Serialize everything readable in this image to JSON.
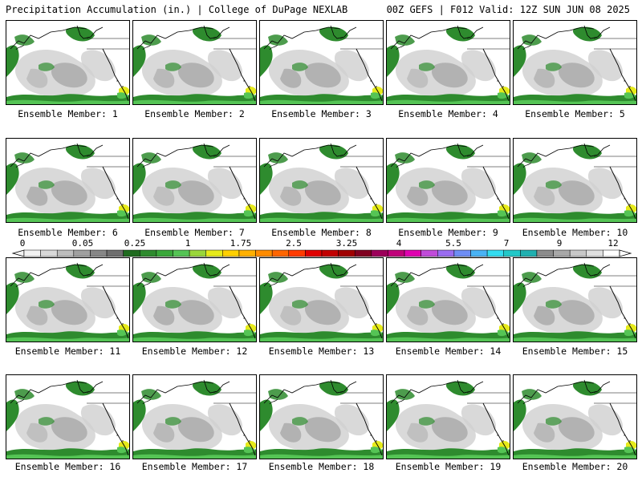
{
  "header": {
    "title": "Precipitation Accumulation (in.) | College of DuPage NEXLAB",
    "run_info": "00Z GEFS | F012 Valid: 12Z SUN JUN 08 2025"
  },
  "panels": [
    {
      "label": "Ensemble Member: 1"
    },
    {
      "label": "Ensemble Member: 2"
    },
    {
      "label": "Ensemble Member: 3"
    },
    {
      "label": "Ensemble Member: 4"
    },
    {
      "label": "Ensemble Member: 5"
    },
    {
      "label": "Ensemble Member: 6"
    },
    {
      "label": "Ensemble Member: 7"
    },
    {
      "label": "Ensemble Member: 8"
    },
    {
      "label": "Ensemble Member: 9"
    },
    {
      "label": "Ensemble Member: 10"
    },
    {
      "label": "Ensemble Member: 11"
    },
    {
      "label": "Ensemble Member: 12"
    },
    {
      "label": "Ensemble Member: 13"
    },
    {
      "label": "Ensemble Member: 14"
    },
    {
      "label": "Ensemble Member: 15"
    },
    {
      "label": "Ensemble Member: 16"
    },
    {
      "label": "Ensemble Member: 17"
    },
    {
      "label": "Ensemble Member: 18"
    },
    {
      "label": "Ensemble Member: 19"
    },
    {
      "label": "Ensemble Member: 20"
    }
  ],
  "colorbar": {
    "tick_labels": [
      "0",
      "0.05",
      "0.25",
      "1",
      "1.75",
      "2.5",
      "3.25",
      "4",
      "5.5",
      "7",
      "9",
      "12"
    ],
    "colors": [
      "#f2f2f2",
      "#d9d9d9",
      "#bdbdbd",
      "#a0a0a0",
      "#878787",
      "#6f6f6f",
      "#1f6b1f",
      "#2e8b2e",
      "#3aa83a",
      "#55c455",
      "#9ad63a",
      "#e6ea1a",
      "#ffd000",
      "#ffb000",
      "#ff8c00",
      "#ff6600",
      "#ff3b00",
      "#e00000",
      "#c20000",
      "#a00000",
      "#800020",
      "#9c005a",
      "#c0007a",
      "#e000b0",
      "#c04bd9",
      "#9a6cf0",
      "#6e8ef5",
      "#49b3f5",
      "#33dcf0",
      "#22c8c8",
      "#20b0b0",
      "#8c8c8c",
      "#a8a8a8",
      "#c8c8c8",
      "#e0e0e0",
      "#ffffff"
    ]
  },
  "map_colors": {
    "land_background": "#ffffff",
    "light_precip": "#d0d0d0",
    "medium_precip": "#a8a8a8",
    "green_precip": "#2e8b2e",
    "bright_green_precip": "#55c455",
    "yellow_precip": "#e6ea1a",
    "coastline": "#000000"
  }
}
